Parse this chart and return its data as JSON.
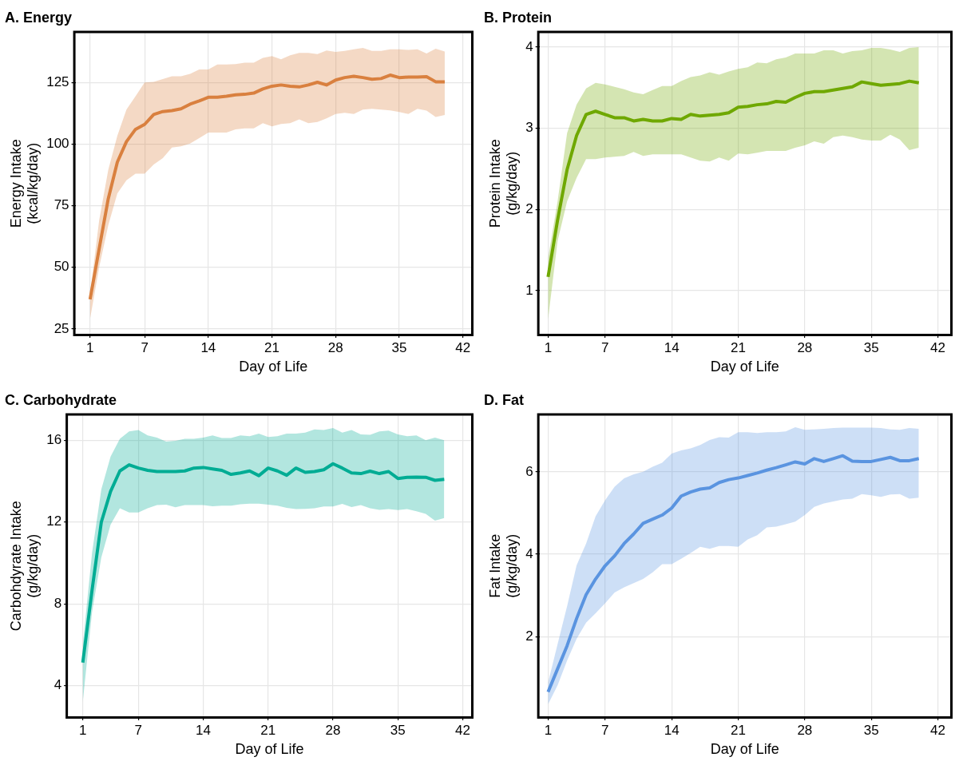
{
  "chart_data": [
    {
      "type": "line",
      "title": "A. Energy",
      "xlabel": "Day of Life",
      "ylabel": "Energy Intake\n(kcal/kg/day)",
      "x": [
        1,
        2,
        3,
        4,
        5,
        6,
        7,
        8,
        9,
        10,
        11,
        12,
        13,
        14,
        15,
        16,
        17,
        18,
        19,
        20,
        21,
        22,
        23,
        24,
        25,
        26,
        27,
        28,
        29,
        30,
        31,
        32,
        33,
        34,
        35,
        36,
        37,
        38,
        39,
        40
      ],
      "xlim": [
        -0.6,
        42.9
      ],
      "xticks": [
        1,
        7,
        14,
        21,
        28,
        35,
        42
      ],
      "ylim": [
        23,
        145
      ],
      "yticks": [
        25,
        50,
        75,
        100,
        125
      ],
      "grid": true,
      "legend": false,
      "marker": "none",
      "line_style": "solid",
      "series": [
        {
          "color": "#d9803f",
          "values": [
            37,
            57.5,
            77.8,
            92.7,
            101,
            106,
            108,
            112,
            113.2,
            113.6,
            114.3,
            116.2,
            117.5,
            119,
            119,
            119.4,
            120,
            120.2,
            120.7,
            122.4,
            123.5,
            124,
            123.5,
            123.2,
            124,
            125.1,
            124,
            126,
            127,
            127.5,
            127,
            126.3,
            126.6,
            128,
            127,
            127.2,
            127.2,
            127.4,
            125.3,
            125.3
          ],
          "lower": [
            29,
            50,
            67,
            80,
            85.3,
            88,
            88,
            91.7,
            94.3,
            98.6,
            99.1,
            100.2,
            102.4,
            104.7,
            104.7,
            104.7,
            106,
            106.4,
            106.4,
            108.5,
            107.2,
            108.2,
            108.5,
            110,
            108.5,
            109,
            110.4,
            112.2,
            112.7,
            112.2,
            114,
            114.3,
            114,
            113.7,
            113,
            112.2,
            114.3,
            113.6,
            111,
            111.8
          ],
          "upper": [
            39,
            69,
            89.5,
            103.4,
            114,
            119.4,
            125,
            125.3,
            126.4,
            127.5,
            127.5,
            128.5,
            130.3,
            130.3,
            132.3,
            132.3,
            132.5,
            133,
            133,
            135,
            135.7,
            134.4,
            136,
            137,
            137,
            136.5,
            138,
            137.4,
            137.8,
            138.5,
            139,
            137.8,
            137.8,
            138.5,
            138.5,
            138.2,
            138.5,
            136.8,
            138.7,
            137.6
          ]
        }
      ]
    },
    {
      "type": "line",
      "title": "B. Protein",
      "xlabel": "Day of Life",
      "ylabel": "Protein Intake\n(g/kg/day)",
      "x": [
        1,
        2,
        3,
        4,
        5,
        6,
        7,
        8,
        9,
        10,
        11,
        12,
        13,
        14,
        15,
        16,
        17,
        18,
        19,
        20,
        21,
        22,
        23,
        24,
        25,
        26,
        27,
        28,
        29,
        30,
        31,
        32,
        33,
        34,
        35,
        36,
        37,
        38,
        39,
        40
      ],
      "xlim": [
        0.1,
        43.3
      ],
      "xticks": [
        1,
        7,
        14,
        21,
        28,
        35,
        42
      ],
      "ylim": [
        0.47,
        4.17
      ],
      "yticks": [
        1,
        2,
        3,
        4
      ],
      "grid": true,
      "legend": false,
      "marker": "none",
      "line_style": "solid",
      "series": [
        {
          "color": "#6fa800",
          "values": [
            1.17,
            1.87,
            2.49,
            2.91,
            3.17,
            3.21,
            3.17,
            3.13,
            3.13,
            3.09,
            3.11,
            3.09,
            3.09,
            3.12,
            3.11,
            3.17,
            3.15,
            3.16,
            3.17,
            3.19,
            3.26,
            3.27,
            3.29,
            3.3,
            3.33,
            3.32,
            3.38,
            3.43,
            3.45,
            3.45,
            3.47,
            3.49,
            3.51,
            3.57,
            3.55,
            3.53,
            3.54,
            3.55,
            3.58,
            3.56
          ],
          "lower": [
            0.65,
            1.61,
            2.1,
            2.39,
            2.62,
            2.62,
            2.64,
            2.65,
            2.66,
            2.71,
            2.66,
            2.68,
            2.68,
            2.68,
            2.68,
            2.64,
            2.6,
            2.59,
            2.64,
            2.6,
            2.69,
            2.68,
            2.7,
            2.72,
            2.72,
            2.72,
            2.76,
            2.79,
            2.84,
            2.81,
            2.89,
            2.91,
            2.89,
            2.86,
            2.85,
            2.85,
            2.92,
            2.86,
            2.73,
            2.76
          ],
          "upper": [
            1.4,
            2.1,
            2.94,
            3.29,
            3.49,
            3.56,
            3.54,
            3.51,
            3.48,
            3.44,
            3.42,
            3.47,
            3.52,
            3.52,
            3.58,
            3.63,
            3.65,
            3.69,
            3.66,
            3.7,
            3.73,
            3.75,
            3.81,
            3.8,
            3.85,
            3.87,
            3.92,
            3.92,
            3.92,
            3.96,
            3.96,
            3.92,
            3.95,
            3.96,
            3.99,
            3.99,
            3.97,
            3.94,
            3.99,
            4.0
          ]
        }
      ]
    },
    {
      "type": "line",
      "title": "C. Carbohydrate",
      "xlabel": "Day of Life",
      "ylabel": "Carbohdyrate Intake\n(g/kg/day)",
      "x": [
        1,
        2,
        3,
        4,
        5,
        6,
        7,
        8,
        9,
        10,
        11,
        12,
        13,
        14,
        15,
        16,
        17,
        18,
        19,
        20,
        21,
        22,
        23,
        24,
        25,
        26,
        27,
        28,
        29,
        30,
        31,
        32,
        33,
        34,
        35,
        36,
        37,
        38,
        39,
        40
      ],
      "xlim": [
        -0.6,
        42.9
      ],
      "xticks": [
        1,
        7,
        14,
        21,
        28,
        35,
        42
      ],
      "ylim": [
        2.5,
        17.2
      ],
      "yticks": [
        4,
        8,
        12,
        16
      ],
      "grid": true,
      "legend": false,
      "marker": "none",
      "line_style": "solid",
      "series": [
        {
          "color": "#00ad94",
          "values": [
            5.13,
            8.67,
            12.0,
            13.5,
            14.5,
            14.8,
            14.64,
            14.53,
            14.47,
            14.47,
            14.47,
            14.5,
            14.64,
            14.67,
            14.6,
            14.53,
            14.33,
            14.4,
            14.5,
            14.27,
            14.64,
            14.5,
            14.29,
            14.64,
            14.43,
            14.47,
            14.56,
            14.85,
            14.64,
            14.4,
            14.37,
            14.49,
            14.37,
            14.47,
            14.13,
            14.19,
            14.2,
            14.19,
            14.04,
            14.09
          ],
          "lower": [
            3.2,
            7.6,
            10.27,
            11.87,
            12.67,
            12.47,
            12.47,
            12.67,
            12.83,
            12.85,
            12.72,
            12.83,
            12.83,
            12.83,
            12.77,
            12.8,
            12.8,
            12.87,
            12.9,
            12.9,
            12.85,
            12.8,
            12.69,
            12.63,
            12.64,
            12.67,
            12.76,
            12.76,
            12.89,
            12.73,
            12.83,
            12.67,
            12.6,
            12.63,
            12.59,
            12.63,
            12.53,
            12.4,
            12.07,
            12.2
          ],
          "upper": [
            6.0,
            10.5,
            13.6,
            15.2,
            16.07,
            16.43,
            16.5,
            16.24,
            16.13,
            15.93,
            15.97,
            16.07,
            16.07,
            16.13,
            16.24,
            16.11,
            16.11,
            16.24,
            16.2,
            16.33,
            16.16,
            16.2,
            16.33,
            16.33,
            16.37,
            16.53,
            16.5,
            16.6,
            16.37,
            16.5,
            16.29,
            16.27,
            16.43,
            16.47,
            16.29,
            16.2,
            16.24,
            16.0,
            16.13,
            16.0
          ]
        }
      ]
    },
    {
      "type": "line",
      "title": "D. Fat",
      "xlabel": "Day of Life",
      "ylabel": "Fat Intake\n(g/kg/day)",
      "x": [
        1,
        2,
        3,
        4,
        5,
        6,
        7,
        8,
        9,
        10,
        11,
        12,
        13,
        14,
        15,
        16,
        17,
        18,
        19,
        20,
        21,
        22,
        23,
        24,
        25,
        26,
        27,
        28,
        29,
        30,
        31,
        32,
        33,
        34,
        35,
        36,
        37,
        38,
        39,
        40
      ],
      "xlim": [
        0.1,
        43.3
      ],
      "xticks": [
        1,
        7,
        14,
        21,
        28,
        35,
        42
      ],
      "ylim": [
        0.07,
        7.36
      ],
      "yticks": [
        2,
        4,
        6
      ],
      "grid": true,
      "legend": false,
      "marker": "none",
      "line_style": "solid",
      "series": [
        {
          "color": "#5b94e0",
          "values": [
            0.66,
            1.22,
            1.78,
            2.44,
            3.02,
            3.4,
            3.72,
            3.96,
            4.26,
            4.49,
            4.75,
            4.85,
            4.95,
            5.12,
            5.41,
            5.51,
            5.58,
            5.61,
            5.74,
            5.81,
            5.85,
            5.91,
            5.97,
            6.04,
            6.1,
            6.17,
            6.24,
            6.19,
            6.32,
            6.25,
            6.32,
            6.39,
            6.26,
            6.25,
            6.25,
            6.3,
            6.35,
            6.27,
            6.27,
            6.32
          ],
          "lower": [
            0.36,
            0.82,
            1.42,
            1.95,
            2.34,
            2.57,
            2.81,
            3.07,
            3.2,
            3.3,
            3.4,
            3.56,
            3.76,
            3.76,
            3.89,
            4.03,
            4.18,
            4.13,
            4.2,
            4.2,
            4.18,
            4.36,
            4.46,
            4.65,
            4.67,
            4.73,
            4.79,
            4.95,
            5.15,
            5.23,
            5.28,
            5.33,
            5.35,
            5.46,
            5.43,
            5.39,
            5.45,
            5.46,
            5.35,
            5.37
          ],
          "upper": [
            0.89,
            1.82,
            2.74,
            3.73,
            4.26,
            4.92,
            5.31,
            5.64,
            5.84,
            5.94,
            6.0,
            6.12,
            6.22,
            6.44,
            6.52,
            6.57,
            6.65,
            6.77,
            6.84,
            6.83,
            6.96,
            6.96,
            6.94,
            6.96,
            6.96,
            6.98,
            7.08,
            7.02,
            7.03,
            7.04,
            7.06,
            7.07,
            7.07,
            7.07,
            7.07,
            7.06,
            7.03,
            7.02,
            7.06,
            7.04
          ]
        }
      ]
    }
  ]
}
